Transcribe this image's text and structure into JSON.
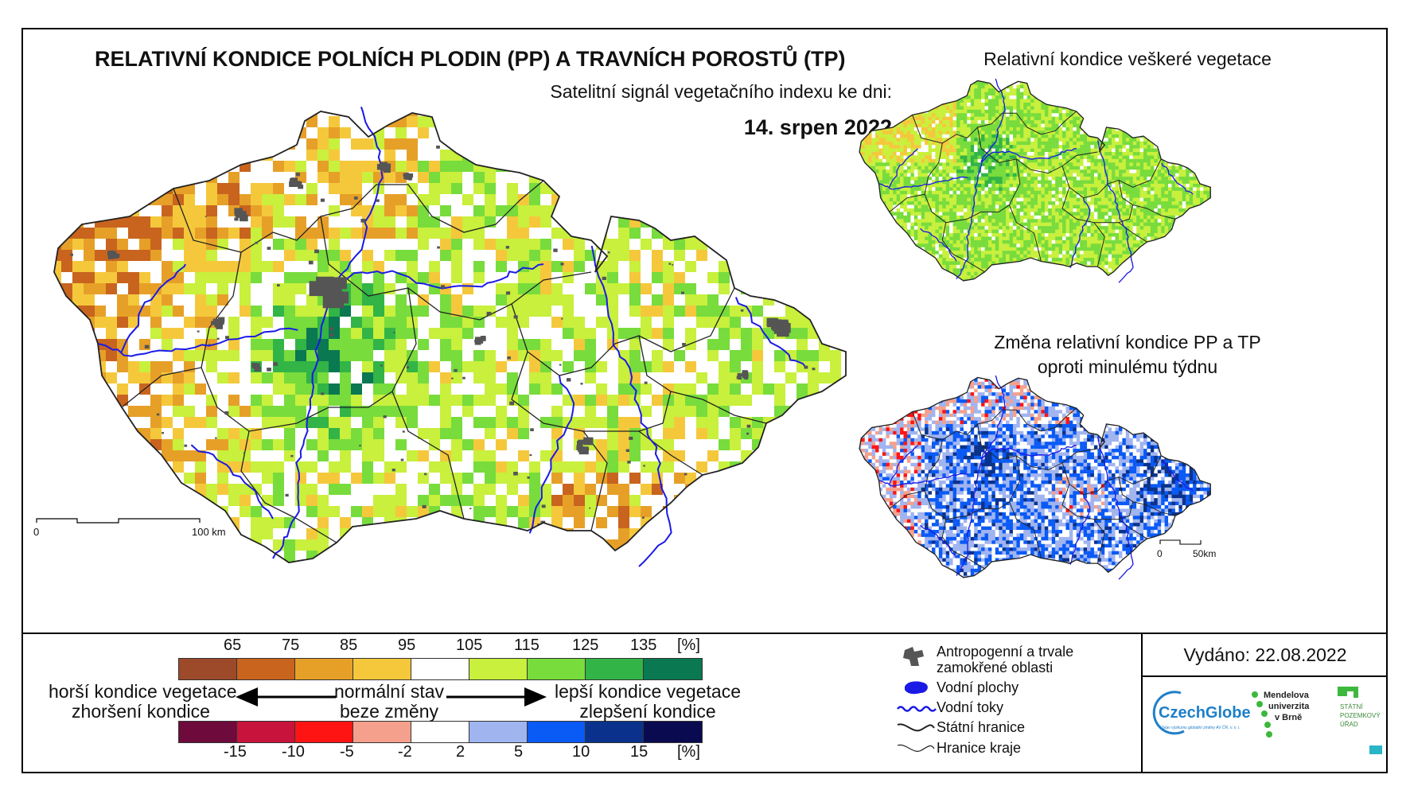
{
  "header": {
    "title": "RELATIVNÍ KONDICE POLNÍCH PLODIN (PP) A TRAVNÍCH POROSTŮ (TP)",
    "subtitle": "Satelitní signál vegetačního indexu ke dni:",
    "date": "14. srpen 2022"
  },
  "insets": {
    "vegetation_title": "Relativní kondice veškeré vegetace",
    "change_title_line1": "Změna relativní kondice PP a TP",
    "change_title_line2": "oproti minulému týdnu"
  },
  "scale_main": {
    "start": "0",
    "end": "100 km"
  },
  "scale_inset": {
    "start": "0",
    "end": "50km"
  },
  "colors": {
    "map_background": "#ffffff",
    "country_fill": "#c8e64a",
    "border": "#222222",
    "river": "#1a1ae6",
    "urban": "#555555",
    "drought": "#f0b43c",
    "wet": "#2aa848"
  },
  "condition_scale": {
    "ticks": [
      "65",
      "75",
      "85",
      "95",
      "105",
      "115",
      "125",
      "135",
      "[%]"
    ],
    "colors": [
      "#9c4a2a",
      "#c8641e",
      "#e6a028",
      "#f5c83c",
      "#ffffff",
      "#c8f03c",
      "#78dc3c",
      "#32b446",
      "#0a7850"
    ]
  },
  "change_scale": {
    "ticks": [
      "-15",
      "-10",
      "-5",
      "-2",
      "2",
      "5",
      "10",
      "15",
      "[%]"
    ],
    "colors": [
      "#6e0a3c",
      "#c8143c",
      "#ff1414",
      "#f5a08c",
      "#ffffff",
      "#a0b4f0",
      "#0a5af5",
      "#0a328c",
      "#0a0a50"
    ]
  },
  "legend_labels": {
    "worse_1": "horší kondice vegetace",
    "worse_2": "zhoršení kondice",
    "normal_1": "normální stav",
    "normal_2": "beze změny",
    "better_1": "lepší kondice vegetace",
    "better_2": "zlepšení kondice"
  },
  "key": {
    "urban_1": "Antropogenní a trvale",
    "urban_2": "zamokřené oblasti",
    "water_bodies": "Vodní plochy",
    "rivers": "Vodní toky",
    "state_border": "Státní hranice",
    "region_border": "Hranice kraje"
  },
  "issued": "Vydáno: 22.08.2022",
  "logos": {
    "czechglobe": "CzechGlobe",
    "czechglobe_sub": "Ústav výzkumu globální změny AV ČR, v. v. i.",
    "mendelu_1": "Mendelova",
    "mendelu_2": "univerzita",
    "mendelu_3": "v Brně",
    "spu_1": "STÁTNÍ",
    "spu_2": "POZEMKOVÝ",
    "spu_3": "ÚŘAD"
  }
}
